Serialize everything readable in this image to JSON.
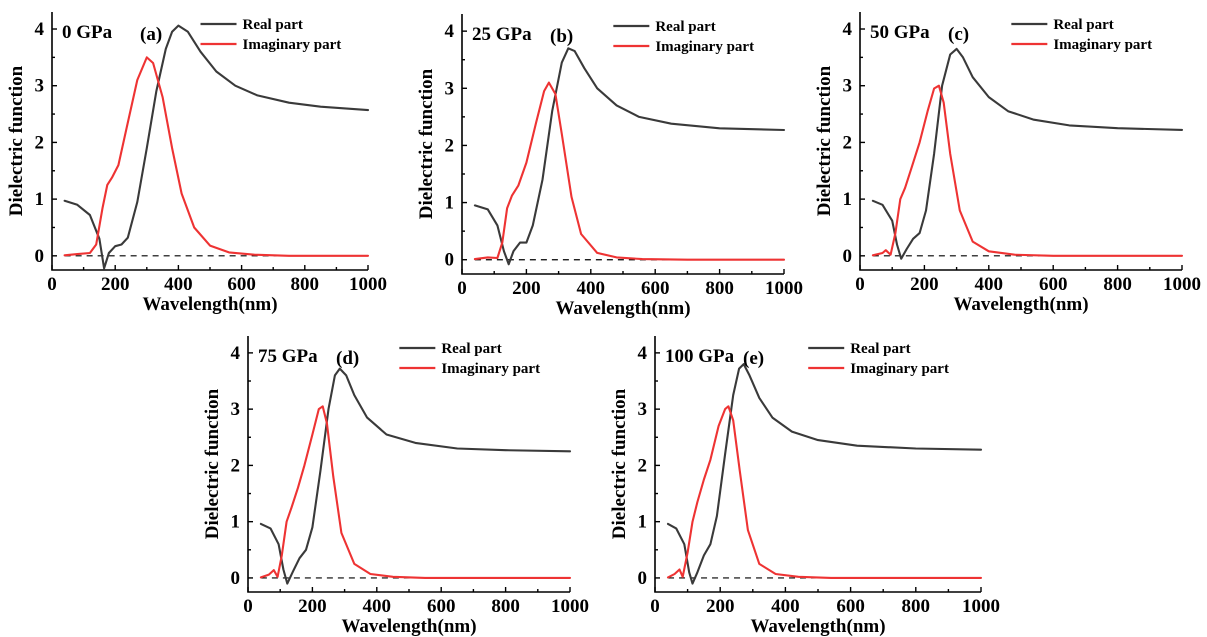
{
  "chart_data": [
    {
      "type": "line",
      "pressure_label": "0 GPa",
      "panel_label": "(a)",
      "xlabel": "Wavelength(nm)",
      "ylabel": "Dielectric function",
      "xlim": [
        0,
        1000
      ],
      "ylim": [
        -0.25,
        4.3
      ],
      "xticks": [
        0,
        200,
        400,
        600,
        800,
        1000
      ],
      "yticks": [
        0,
        1,
        2,
        3,
        4
      ],
      "reference_line_y": 0,
      "legend_position": "top-right",
      "series": [
        {
          "name": "Real part",
          "color": "#3a3a3a",
          "x": [
            40,
            80,
            120,
            150,
            165,
            180,
            200,
            220,
            240,
            270,
            300,
            330,
            360,
            380,
            400,
            430,
            470,
            520,
            580,
            650,
            750,
            850,
            1000
          ],
          "y": [
            0.97,
            0.9,
            0.72,
            0.3,
            -0.22,
            0.05,
            0.17,
            0.2,
            0.32,
            0.95,
            1.9,
            2.9,
            3.65,
            3.95,
            4.06,
            3.95,
            3.6,
            3.25,
            3.0,
            2.83,
            2.7,
            2.63,
            2.57
          ]
        },
        {
          "name": "Imaginary part",
          "color": "#ee3333",
          "x": [
            40,
            80,
            120,
            140,
            160,
            175,
            190,
            210,
            240,
            270,
            300,
            320,
            350,
            380,
            410,
            450,
            500,
            560,
            640,
            750,
            1000
          ],
          "y": [
            0.01,
            0.03,
            0.05,
            0.2,
            0.85,
            1.25,
            1.38,
            1.6,
            2.35,
            3.1,
            3.5,
            3.4,
            2.8,
            1.9,
            1.1,
            0.5,
            0.18,
            0.06,
            0.02,
            0.0,
            0.0
          ]
        }
      ]
    },
    {
      "type": "line",
      "pressure_label": "25 GPa",
      "panel_label": "(b)",
      "xlabel": "Wavelength(nm)",
      "ylabel": "Dielectric function",
      "xlim": [
        0,
        1000
      ],
      "ylim": [
        -0.25,
        4.3
      ],
      "xticks": [
        0,
        200,
        400,
        600,
        800,
        1000
      ],
      "yticks": [
        0,
        1,
        2,
        3,
        4
      ],
      "reference_line_y": 0,
      "legend_position": "top-right",
      "series": [
        {
          "name": "Real part",
          "color": "#3a3a3a",
          "x": [
            40,
            80,
            110,
            130,
            145,
            160,
            180,
            200,
            220,
            250,
            280,
            310,
            330,
            350,
            380,
            420,
            480,
            550,
            650,
            800,
            1000
          ],
          "y": [
            0.95,
            0.88,
            0.6,
            0.15,
            -0.08,
            0.15,
            0.3,
            0.3,
            0.6,
            1.4,
            2.6,
            3.45,
            3.7,
            3.65,
            3.35,
            3.0,
            2.7,
            2.5,
            2.38,
            2.3,
            2.27
          ]
        },
        {
          "name": "Imaginary part",
          "color": "#ee3333",
          "x": [
            40,
            80,
            110,
            125,
            140,
            155,
            175,
            200,
            230,
            255,
            270,
            290,
            310,
            340,
            370,
            420,
            480,
            560,
            700,
            1000
          ],
          "y": [
            0.01,
            0.04,
            0.03,
            0.3,
            0.9,
            1.12,
            1.3,
            1.7,
            2.4,
            2.95,
            3.1,
            2.9,
            2.2,
            1.1,
            0.45,
            0.12,
            0.04,
            0.01,
            0.0,
            0.0
          ]
        }
      ]
    },
    {
      "type": "line",
      "pressure_label": "50 GPa",
      "panel_label": "(c)",
      "xlabel": "Wavelength(nm)",
      "ylabel": "Dielectric function",
      "xlim": [
        0,
        1000
      ],
      "ylim": [
        -0.25,
        4.3
      ],
      "xticks": [
        0,
        200,
        400,
        600,
        800,
        1000
      ],
      "yticks": [
        0,
        1,
        2,
        3,
        4
      ],
      "reference_line_y": 0,
      "legend_position": "top-right",
      "series": [
        {
          "name": "Real part",
          "color": "#3a3a3a",
          "x": [
            40,
            70,
            100,
            115,
            128,
            145,
            165,
            185,
            205,
            230,
            255,
            280,
            300,
            320,
            350,
            400,
            460,
            540,
            650,
            800,
            1000
          ],
          "y": [
            0.97,
            0.9,
            0.62,
            0.2,
            -0.05,
            0.12,
            0.3,
            0.4,
            0.8,
            1.8,
            3.0,
            3.55,
            3.65,
            3.5,
            3.15,
            2.8,
            2.55,
            2.4,
            2.3,
            2.25,
            2.22
          ]
        },
        {
          "name": "Imaginary part",
          "color": "#ee3333",
          "x": [
            40,
            70,
            80,
            95,
            110,
            125,
            140,
            160,
            185,
            210,
            230,
            245,
            260,
            280,
            310,
            350,
            400,
            480,
            600,
            1000
          ],
          "y": [
            0.01,
            0.05,
            0.1,
            0.02,
            0.4,
            1.0,
            1.2,
            1.55,
            2.0,
            2.55,
            2.95,
            3.0,
            2.7,
            1.8,
            0.8,
            0.25,
            0.08,
            0.02,
            0.0,
            0.0
          ]
        }
      ]
    },
    {
      "type": "line",
      "pressure_label": "75 GPa",
      "panel_label": "(d)",
      "xlabel": "Wavelength(nm)",
      "ylabel": "Dielectric function",
      "xlim": [
        0,
        1000
      ],
      "ylim": [
        -0.25,
        4.3
      ],
      "xticks": [
        0,
        200,
        400,
        600,
        800,
        1000
      ],
      "yticks": [
        0,
        1,
        2,
        3,
        4
      ],
      "reference_line_y": 0,
      "legend_position": "top-right",
      "series": [
        {
          "name": "Real part",
          "color": "#3a3a3a",
          "x": [
            40,
            70,
            95,
            110,
            122,
            140,
            160,
            180,
            200,
            225,
            250,
            270,
            285,
            305,
            330,
            370,
            430,
            520,
            650,
            800,
            1000
          ],
          "y": [
            0.96,
            0.88,
            0.6,
            0.15,
            -0.1,
            0.12,
            0.35,
            0.5,
            0.9,
            1.9,
            3.0,
            3.6,
            3.72,
            3.6,
            3.25,
            2.85,
            2.55,
            2.4,
            2.3,
            2.27,
            2.25
          ]
        },
        {
          "name": "Imaginary part",
          "color": "#ee3333",
          "x": [
            40,
            65,
            80,
            92,
            105,
            120,
            135,
            155,
            175,
            200,
            220,
            232,
            245,
            265,
            290,
            330,
            380,
            450,
            550,
            1000
          ],
          "y": [
            0.01,
            0.06,
            0.14,
            0.02,
            0.4,
            1.0,
            1.25,
            1.6,
            2.0,
            2.55,
            3.0,
            3.05,
            2.75,
            1.8,
            0.8,
            0.25,
            0.07,
            0.02,
            0.0,
            0.0
          ]
        }
      ]
    },
    {
      "type": "line",
      "pressure_label": "100 GPa",
      "panel_label": "(e)",
      "xlabel": "Wavelength(nm)",
      "ylabel": "Dielectric function",
      "xlim": [
        0,
        1000
      ],
      "ylim": [
        -0.25,
        4.3
      ],
      "xticks": [
        0,
        200,
        400,
        600,
        800,
        1000
      ],
      "yticks": [
        0,
        1,
        2,
        3,
        4
      ],
      "reference_line_y": 0,
      "legend_position": "top-right",
      "series": [
        {
          "name": "Real part",
          "color": "#3a3a3a",
          "x": [
            40,
            65,
            90,
            105,
            115,
            130,
            150,
            170,
            190,
            215,
            240,
            258,
            272,
            290,
            320,
            360,
            420,
            500,
            620,
            800,
            1000
          ],
          "y": [
            0.96,
            0.88,
            0.6,
            0.1,
            -0.1,
            0.1,
            0.4,
            0.6,
            1.1,
            2.2,
            3.25,
            3.72,
            3.8,
            3.6,
            3.2,
            2.85,
            2.6,
            2.45,
            2.35,
            2.3,
            2.28
          ]
        },
        {
          "name": "Imaginary part",
          "color": "#ee3333",
          "x": [
            40,
            60,
            75,
            85,
            100,
            115,
            130,
            150,
            170,
            195,
            215,
            225,
            240,
            260,
            285,
            320,
            370,
            440,
            540,
            1000
          ],
          "y": [
            0.01,
            0.07,
            0.15,
            0.02,
            0.45,
            1.0,
            1.35,
            1.75,
            2.1,
            2.7,
            3.0,
            3.05,
            2.8,
            1.9,
            0.85,
            0.25,
            0.07,
            0.02,
            0.0,
            0.0
          ]
        }
      ]
    }
  ]
}
